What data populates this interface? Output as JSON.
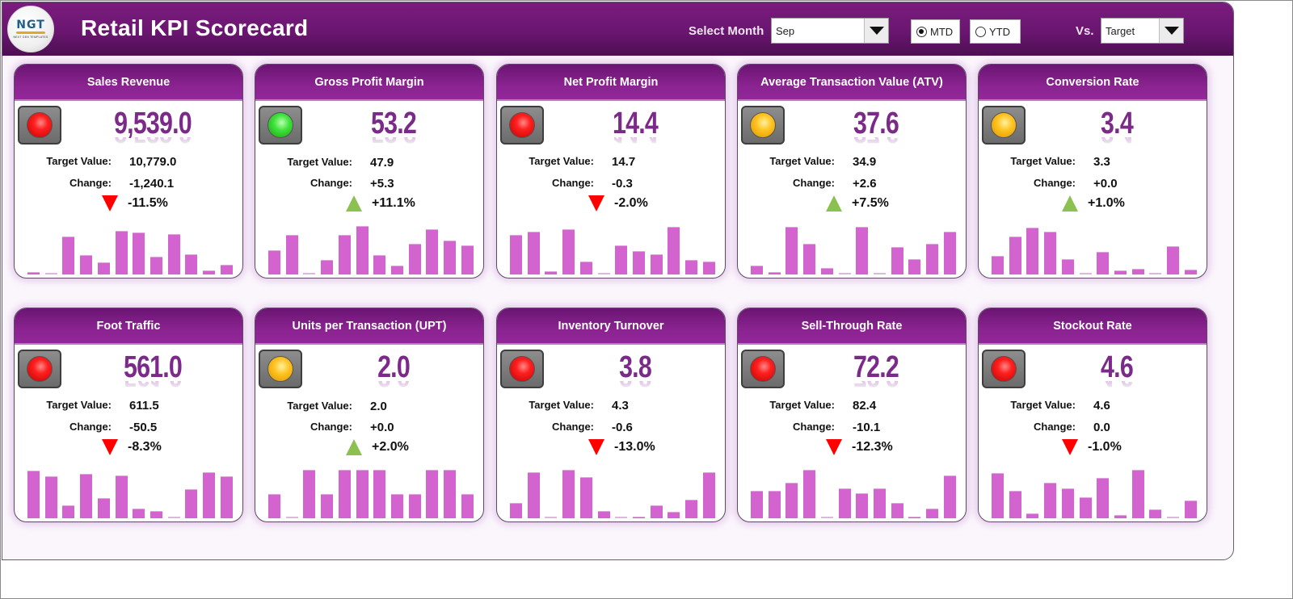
{
  "header": {
    "logo_text": "NGT",
    "logo_subtext": "NEXT GEN TEMPLATES",
    "title": "Retail KPI Scorecard",
    "month_label": "Select Month",
    "month_value": "Sep",
    "period_options": [
      {
        "label": "MTD",
        "selected": true
      },
      {
        "label": "YTD",
        "selected": false
      }
    ],
    "vs_label": "Vs.",
    "vs_value": "Target"
  },
  "labels": {
    "target": "Target Value:",
    "change": "Change:"
  },
  "colors": {
    "brand_purple": "#7b1c7e",
    "value_purple": "#7c2a8a",
    "bar_color": "#d363cf",
    "up_color": "#8cc152",
    "down_color": "#ff0000"
  },
  "cards": [
    {
      "title": "Sales Revenue",
      "status": "red",
      "value": "9,539.0",
      "target": "10,779.0",
      "change": "-1,240.1",
      "direction": "down",
      "pct": "-11.5%",
      "bars": [
        0.05,
        0.01,
        0.78,
        0.4,
        0.25,
        0.9,
        0.87,
        0.36,
        0.84,
        0.42,
        0.08,
        0.2
      ]
    },
    {
      "title": "Gross Profit Margin",
      "status": "green",
      "value": "53.2",
      "target": "47.9",
      "change": "+5.3",
      "direction": "up",
      "pct": "+11.1%",
      "bars": [
        0.5,
        0.82,
        0.02,
        0.3,
        0.82,
        1.0,
        0.4,
        0.18,
        0.64,
        0.93,
        0.7,
        0.6
      ]
    },
    {
      "title": "Net Profit Margin",
      "status": "red",
      "value": "14.4",
      "target": "14.7",
      "change": "-0.3",
      "direction": "down",
      "pct": "-2.0%",
      "bars": [
        0.82,
        0.88,
        0.06,
        0.94,
        0.26,
        0.01,
        0.6,
        0.48,
        0.42,
        0.98,
        0.3,
        0.26
      ]
    },
    {
      "title": "Average Transaction Value (ATV)",
      "status": "amber",
      "value": "37.6",
      "target": "34.9",
      "change": "+2.6",
      "direction": "up",
      "pct": "+7.5%",
      "bars": [
        0.18,
        0.05,
        0.98,
        0.64,
        0.14,
        0.01,
        0.98,
        0.01,
        0.56,
        0.32,
        0.64,
        0.88
      ]
    },
    {
      "title": "Conversion Rate",
      "status": "amber",
      "value": "3.4",
      "target": "3.3",
      "change": "+0.0",
      "direction": "up",
      "pct": "+1.0%",
      "bars": [
        0.38,
        0.78,
        0.96,
        0.88,
        0.32,
        0.01,
        0.46,
        0.08,
        0.12,
        0.01,
        0.58,
        0.1
      ]
    },
    {
      "title": "Foot Traffic",
      "status": "red",
      "value": "561.0",
      "target": "611.5",
      "change": "-50.5",
      "direction": "down",
      "pct": "-8.3%",
      "bars": [
        0.98,
        0.86,
        0.26,
        0.92,
        0.42,
        0.88,
        0.2,
        0.15,
        0.01,
        0.6,
        0.95,
        0.86
      ]
    },
    {
      "title": "Units per Transaction (UPT)",
      "status": "amber",
      "value": "2.0",
      "target": "2.0",
      "change": "+0.0",
      "direction": "up",
      "pct": "+2.0%",
      "bars": [
        0.5,
        0.02,
        1.0,
        0.5,
        1.0,
        1.0,
        1.0,
        0.5,
        0.5,
        1.0,
        1.0,
        0.5
      ]
    },
    {
      "title": "Inventory Turnover",
      "status": "red",
      "value": "3.8",
      "target": "4.3",
      "change": "-0.6",
      "direction": "down",
      "pct": "-13.0%",
      "bars": [
        0.32,
        0.95,
        0.01,
        1.0,
        0.85,
        0.15,
        0.01,
        0.04,
        0.26,
        0.14,
        0.38,
        0.95
      ]
    },
    {
      "title": "Sell-Through Rate",
      "status": "red",
      "value": "72.2",
      "target": "82.4",
      "change": "-10.1",
      "direction": "down",
      "pct": "-12.3%",
      "bars": [
        0.56,
        0.56,
        0.74,
        1.0,
        0.01,
        0.62,
        0.52,
        0.62,
        0.32,
        0.04,
        0.2,
        0.88
      ]
    },
    {
      "title": "Stockout Rate",
      "status": "red",
      "value": "4.6",
      "target": "4.6",
      "change": "0.0",
      "direction": "down",
      "pct": "-1.0%",
      "bars": [
        0.94,
        0.56,
        0.1,
        0.74,
        0.61,
        0.44,
        0.83,
        0.07,
        1.0,
        0.18,
        0.01,
        0.36
      ]
    }
  ]
}
